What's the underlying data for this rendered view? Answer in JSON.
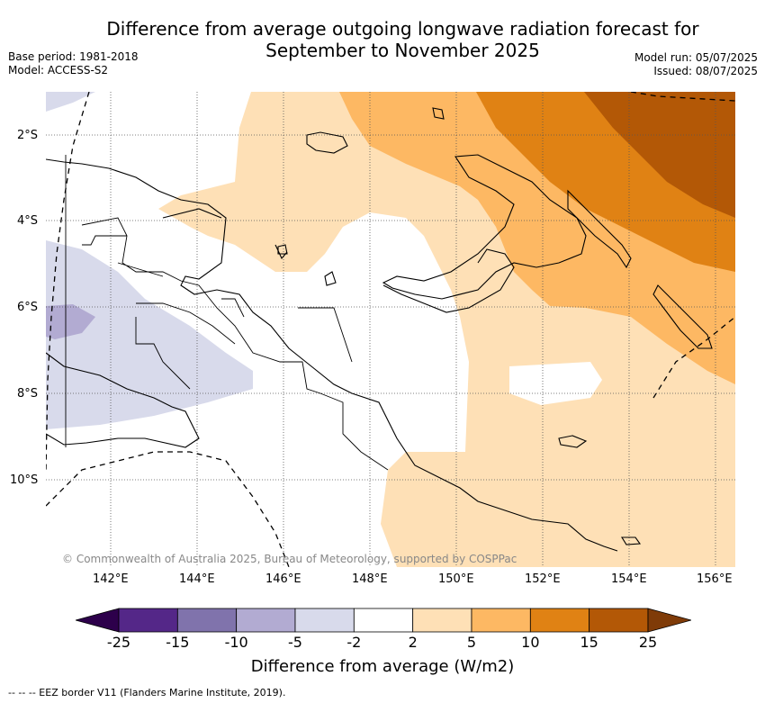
{
  "title_line1": "Difference from average outgoing longwave radiation forecast for",
  "title_line2": "September to November 2025",
  "base_period": "Base period: 1981-2018",
  "model": "Model: ACCESS-S2",
  "model_run": "Model run: 05/07/2025",
  "issued": "Issued: 08/07/2025",
  "credit": "© Commonwealth of Australia 2025, Bureau of Meteorology, supported by COSPPac",
  "lat_labels": [
    "2°S",
    "4°S",
    "6°S",
    "8°S",
    "10°S"
  ],
  "lon_labels": [
    "142°E",
    "144°E",
    "146°E",
    "148°E",
    "150°E",
    "152°E",
    "154°E",
    "156°E"
  ],
  "colorbar": {
    "label": "Difference from average (W/m2)",
    "ticks": [
      "-25",
      "-15",
      "-10",
      "-5",
      "-2",
      "2",
      "5",
      "10",
      "15",
      "25"
    ],
    "colors": [
      "#2d004b",
      "#542788",
      "#8073ac",
      "#b2abd2",
      "#d8daeb",
      "#ffffff",
      "#fee0b6",
      "#fdb863",
      "#e08214",
      "#b35806",
      "#7f3b08"
    ]
  },
  "eez_note": "--  --  -- EEZ border V11 (Flanders Marine Institute, 2019)."
}
